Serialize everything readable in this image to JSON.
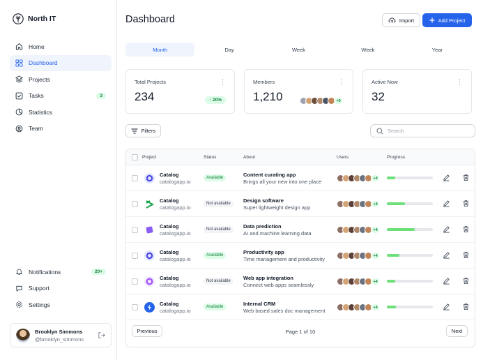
{
  "brand": {
    "name": "North IT"
  },
  "nav": {
    "items": [
      {
        "label": "Home",
        "icon": "home-icon"
      },
      {
        "label": "Dashboard",
        "icon": "grid-icon",
        "active": true
      },
      {
        "label": "Projects",
        "icon": "layers-icon"
      },
      {
        "label": "Tasks",
        "icon": "checkbox-icon",
        "badge": "3"
      },
      {
        "label": "Statistics",
        "icon": "pie-chart-icon"
      },
      {
        "label": "Team",
        "icon": "user-circle-icon"
      }
    ],
    "bottom": [
      {
        "label": "Notifications",
        "icon": "bell-icon",
        "badge": "20+"
      },
      {
        "label": "Support",
        "icon": "chat-icon"
      },
      {
        "label": "Settings",
        "icon": "gear-icon"
      }
    ]
  },
  "user": {
    "name": "Brooklyn Simmons",
    "handle": "@brooklyn_simmons"
  },
  "header": {
    "title": "Dashboard",
    "import_label": "Import",
    "add_label": "Add Project"
  },
  "tabs": [
    "Month",
    "Day",
    "Week",
    "Week",
    "Year"
  ],
  "stats": {
    "total": {
      "label": "Total Projects",
      "value": "234",
      "trend": "20%"
    },
    "members": {
      "label": "Members",
      "value": "1,210",
      "more": "+9"
    },
    "active": {
      "label": "Active Now",
      "value": "32"
    }
  },
  "toolbar": {
    "filters_label": "Filters",
    "search_placeholder": "Search"
  },
  "table": {
    "headers": {
      "project": "Project",
      "status": "Status",
      "about": "About",
      "users": "Users",
      "progress": "Progress"
    },
    "rows": [
      {
        "name": "Catalog",
        "url": "catalogapp.io",
        "status": "Available",
        "about_title": "Content curating app",
        "about_desc": "Brings all your new into one place",
        "more": "+4",
        "progress": 0.18,
        "logo_color": "#4f46e5"
      },
      {
        "name": "Catalog",
        "url": "catalogapp.io",
        "status": "Not available",
        "about_title": "Design software",
        "about_desc": "Super lightweight design app",
        "more": "+4",
        "progress": 0.4,
        "logo_color": "#16a34a"
      },
      {
        "name": "Catalog",
        "url": "catalogapp.io",
        "status": "Not available",
        "about_title": "Data prediction",
        "about_desc": "AI and machine learning data",
        "more": "+4",
        "progress": 0.6,
        "logo_color": "#7c3aed"
      },
      {
        "name": "Catalog",
        "url": "catalogapp.io",
        "status": "Available",
        "about_title": "Productivity app",
        "about_desc": "Time management and productivity",
        "more": "+4",
        "progress": 0.28,
        "logo_color": "#4f46e5"
      },
      {
        "name": "Catalog",
        "url": "catalogapp.io",
        "status": "Not available",
        "about_title": "Web app integration",
        "about_desc": "Connect web apps seamlessly",
        "more": "+4",
        "progress": 0.18,
        "logo_color": "#a855f7"
      },
      {
        "name": "Catalog",
        "url": "catalogapp.io",
        "status": "Available",
        "about_title": "Internal CRM",
        "about_desc": "Web based sales doc management",
        "more": "+4",
        "progress": 0.2,
        "logo_color": "#2563eb"
      }
    ]
  },
  "pagination": {
    "previous": "Previous",
    "info": "Page 1 of 10",
    "next": "Next"
  },
  "colors": {
    "accent": "#2563eb",
    "success": "#15803d",
    "progress": "#6ee07a"
  }
}
